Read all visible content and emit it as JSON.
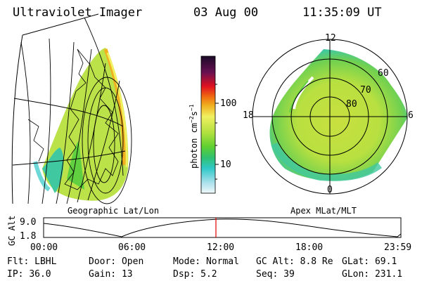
{
  "header": {
    "instrument": "Ultraviolet Imager",
    "date": "03 Aug 00",
    "time": "11:35:09 UT"
  },
  "left_panel": {
    "label": "Geographic Lat/Lon"
  },
  "right_panel": {
    "label": "Apex MLat/MLT",
    "mlt_labels": {
      "top": "12",
      "left": "18",
      "right": "6",
      "bottom": "0"
    },
    "lat_labels": [
      "60",
      "70",
      "80"
    ]
  },
  "colorbar": {
    "unit_label": "photon cm",
    "unit_exp1": "−2",
    "unit_mid": "s",
    "unit_exp2": "−1",
    "tick_labels": [
      "100",
      "10"
    ],
    "colors": [
      "#2a0a3a",
      "#9a1040",
      "#e01020",
      "#f06010",
      "#f0a020",
      "#f0f060",
      "#c0e040",
      "#70d030",
      "#30c070",
      "#30c8c8",
      "#a0e0e8",
      "#e8f4f8"
    ]
  },
  "orbit_plot": {
    "y_label": "GC Alt",
    "y_ticks": [
      "9.0",
      "1.8"
    ],
    "x_ticks": [
      "00:00",
      "06:00",
      "12:00",
      "18:00",
      "23:59"
    ]
  },
  "info": {
    "row1": [
      {
        "label": "Flt:",
        "value": "LBHL"
      },
      {
        "label": "Door:",
        "value": "Open"
      },
      {
        "label": "Mode:",
        "value": "Normal"
      },
      {
        "label": "GC Alt:",
        "value": "8.8 Re"
      },
      {
        "label": "GLat:",
        "value": "69.1"
      }
    ],
    "row2": [
      {
        "label": "IP:",
        "value": "36.0"
      },
      {
        "label": "Gain:",
        "value": "13"
      },
      {
        "label": "Dsp:",
        "value": "5.2"
      },
      {
        "label": "Seq:",
        "value": "39"
      },
      {
        "label": "GLon:",
        "value": "231.1"
      }
    ]
  }
}
